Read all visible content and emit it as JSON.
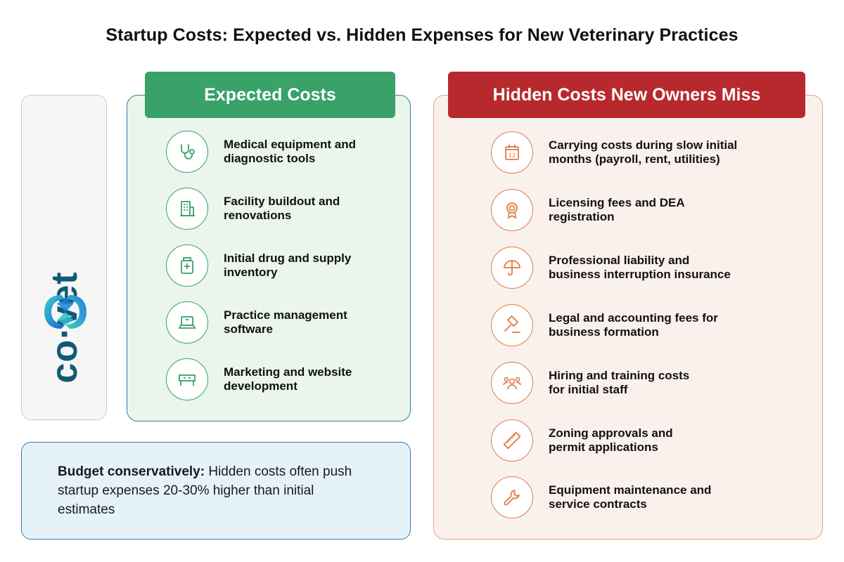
{
  "title": "Startup Costs: Expected vs. Hidden Expenses for New Veterinary Practices",
  "logo": {
    "text": "co·vet",
    "icon": "covet-logo-mark"
  },
  "expected": {
    "header": "Expected Costs",
    "accent": "#38a269",
    "items": [
      {
        "label": "Medical equipment and\ndiagnostic tools",
        "icon": "stethoscope-icon"
      },
      {
        "label": "Facility buildout and\nrenovations",
        "icon": "building-icon"
      },
      {
        "label": "Initial drug and supply\ninventory",
        "icon": "medicine-bottle-icon"
      },
      {
        "label": "Practice management\nsoftware",
        "icon": "laptop-icon"
      },
      {
        "label": "Marketing and website\ndevelopment",
        "icon": "desk-icon"
      }
    ]
  },
  "hidden": {
    "header": "Hidden Costs New Owners Miss",
    "accent": "#b7292c",
    "icon_color": "#e27a45",
    "items": [
      {
        "label": "Carrying costs during slow initial\nmonths (payroll, rent, utilities)",
        "icon": "calendar-icon",
        "icon_text": "12"
      },
      {
        "label": "Licensing fees and DEA\nregistration",
        "icon": "award-ribbon-icon"
      },
      {
        "label": "Professional liability and\nbusiness interruption insurance",
        "icon": "umbrella-icon"
      },
      {
        "label": "Legal and accounting fees for\nbusiness formation",
        "icon": "gavel-icon"
      },
      {
        "label": "Hiring and training costs\nfor initial staff",
        "icon": "team-icon"
      },
      {
        "label": "Zoning approvals and\npermit applications",
        "icon": "ruler-icon"
      },
      {
        "label": "Equipment maintenance and\nservice contracts",
        "icon": "wrench-icon"
      }
    ]
  },
  "note": {
    "strong": "Budget conservatively:",
    "text": " Hidden costs often push startup expenses 20-30% higher than initial estimates"
  }
}
